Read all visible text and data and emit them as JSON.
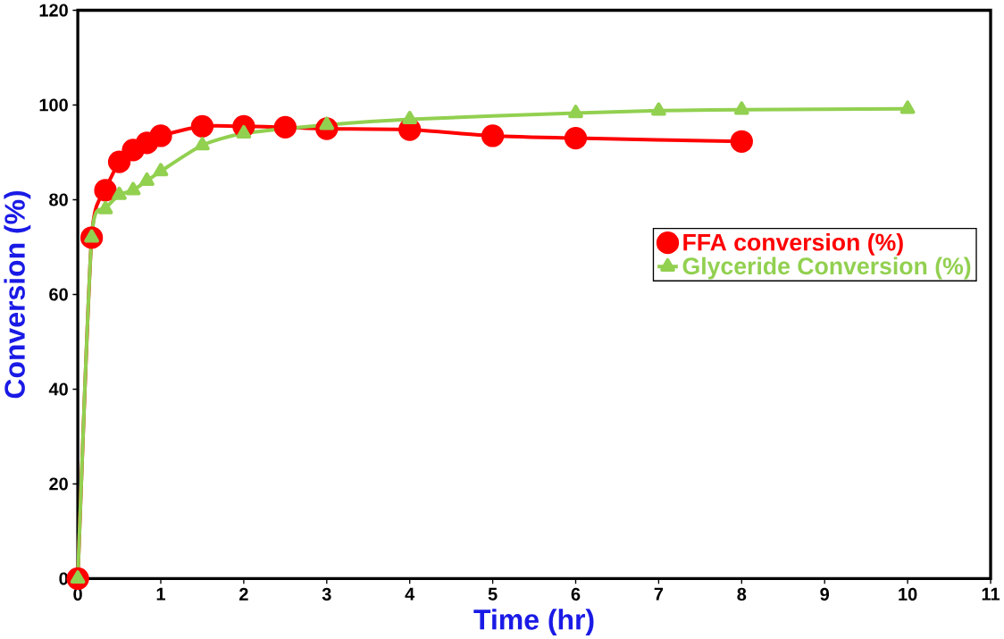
{
  "chart_data": {
    "type": "line",
    "xlabel": "Time (hr)",
    "ylabel": "Conversion (%)",
    "xlim": [
      0,
      11
    ],
    "xticks": [
      0,
      1,
      2,
      3,
      4,
      5,
      6,
      7,
      8,
      9,
      10,
      11
    ],
    "ylim": [
      0,
      120
    ],
    "yticks": [
      0,
      20,
      40,
      60,
      80,
      100,
      120
    ],
    "grid": false,
    "legend": "right",
    "series": [
      {
        "name": "FFA conversion (%)",
        "color": "#ff0000",
        "marker": "circle",
        "x": [
          0,
          0.167,
          0.333,
          0.5,
          0.667,
          0.833,
          1,
          1.5,
          2,
          2.5,
          3,
          4,
          5,
          6,
          8
        ],
        "values": [
          0,
          72,
          82,
          88,
          90.5,
          92,
          93.5,
          95.5,
          95.5,
          95.3,
          95,
          94.8,
          93.5,
          93,
          92.3
        ]
      },
      {
        "name": "Glyceride Conversion (%)",
        "color": "#92d050",
        "marker": "triangle",
        "x": [
          0,
          0.167,
          0.333,
          0.5,
          0.667,
          0.833,
          1,
          1.5,
          2,
          3,
          4,
          6,
          7,
          8,
          10
        ],
        "values": [
          0,
          72,
          78,
          81,
          82,
          84,
          86,
          91.5,
          94,
          95.8,
          97,
          98.3,
          98.8,
          99,
          99.2
        ]
      }
    ]
  }
}
